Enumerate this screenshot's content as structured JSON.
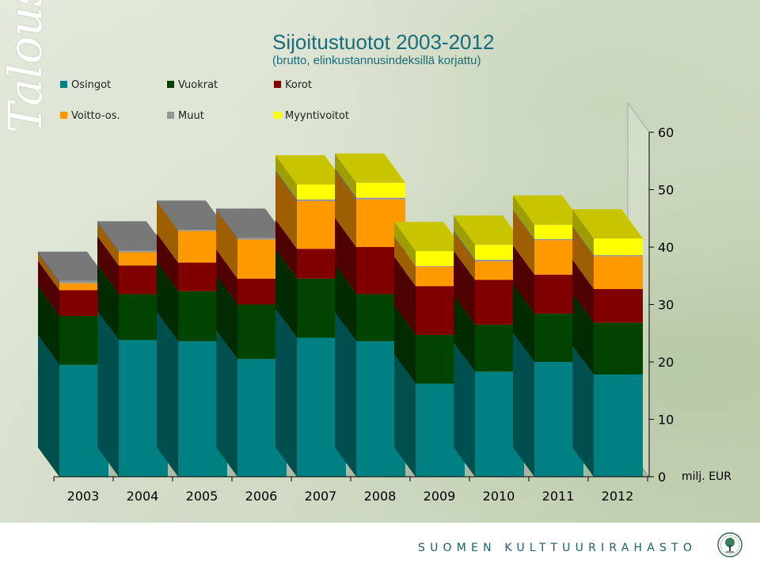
{
  "side_title": "Talous",
  "footer_text": "SUOMEN KULTTUURIRAHASTO",
  "chart_data": {
    "type": "bar",
    "stacked": true,
    "title": "Sijoitustuotot 2003-2012",
    "subtitle": "(brutto, elinkustannusindeksillä korjattu)",
    "unit_label": "milj. EUR",
    "categories": [
      "2003",
      "2004",
      "2005",
      "2006",
      "2007",
      "2008",
      "2009",
      "2010",
      "2011",
      "2012"
    ],
    "ylim": [
      0,
      60
    ],
    "yticks": [
      0,
      10,
      20,
      30,
      40,
      50,
      60
    ],
    "legend": {
      "placement": "top-left"
    },
    "series": [
      {
        "name": "Osingot",
        "color": "#008080",
        "values": [
          19.5,
          23.8,
          23.6,
          20.5,
          24.2,
          23.6,
          16.2,
          18.3,
          20.0,
          17.8
        ]
      },
      {
        "name": "Vuokrat",
        "color": "#004400",
        "values": [
          8.5,
          8.0,
          8.7,
          9.5,
          10.3,
          8.2,
          8.5,
          8.2,
          8.4,
          9.0
        ]
      },
      {
        "name": "Korot",
        "color": "#800000",
        "values": [
          4.5,
          5.0,
          5.0,
          4.5,
          5.2,
          8.2,
          8.5,
          7.8,
          6.8,
          5.9
        ]
      },
      {
        "name": "Voitto-os.",
        "color": "#FF9900",
        "values": [
          1.2,
          2.3,
          5.5,
          6.8,
          8.3,
          8.3,
          3.4,
          3.2,
          6.0,
          5.7
        ]
      },
      {
        "name": "Muut",
        "color": "#969696",
        "values": [
          0.4,
          0.3,
          0.2,
          0.3,
          0.3,
          0.3,
          0.1,
          0.3,
          0.2,
          0.2
        ]
      },
      {
        "name": "Myyntivoitot",
        "color": "#FFFF00",
        "values": [
          0,
          0,
          0,
          0,
          2.6,
          2.6,
          2.6,
          2.6,
          2.5,
          2.9
        ]
      }
    ]
  }
}
